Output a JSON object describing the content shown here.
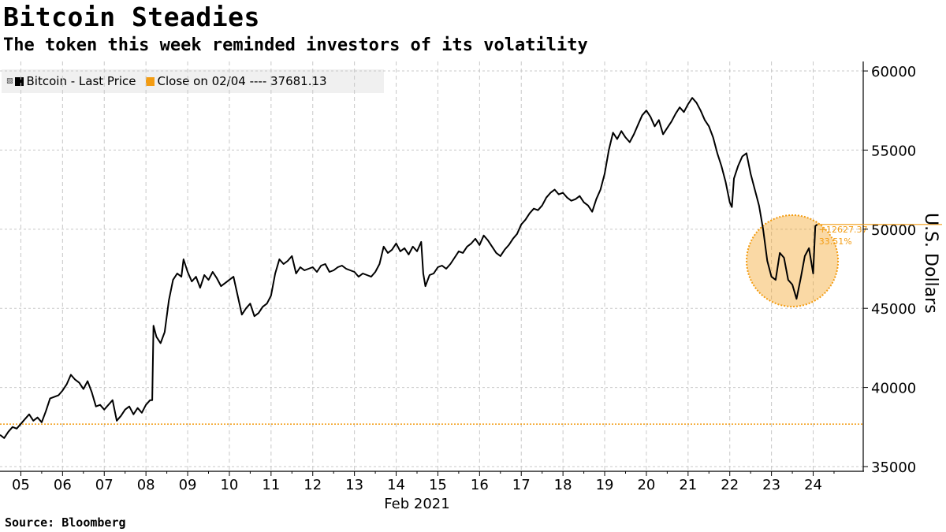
{
  "title": "Bitcoin Steadies",
  "subtitle": "The token this week reminded investors of its volatility",
  "source": "Source: Bloomberg",
  "legend": {
    "series_label": "Bitcoin - Last Price",
    "close_label": "Close on 02/04 ---- 37681.13",
    "series_color": "#000000",
    "close_color": "#f39c12"
  },
  "chart_data": {
    "type": "line",
    "title": "Bitcoin Steadies",
    "subtitle": "The token this week reminded investors of its volatility",
    "ylabel": "U.S. Dollars",
    "xlabel": "Feb 2021",
    "ylim": [
      34700,
      60600
    ],
    "y_ticks": [
      "35000",
      "40000",
      "45000",
      "50000",
      "55000",
      "60000"
    ],
    "x_ticks": [
      "05",
      "06",
      "07",
      "08",
      "09",
      "10",
      "11",
      "12",
      "13",
      "14",
      "15",
      "16",
      "17",
      "18",
      "19",
      "20",
      "21",
      "22",
      "23",
      "24"
    ],
    "x_tick_days": [
      5,
      6,
      7,
      8,
      9,
      10,
      11,
      12,
      13,
      14,
      15,
      16,
      17,
      18,
      19,
      20,
      21,
      22,
      23,
      24
    ],
    "x_range_days": [
      4.5,
      25.2
    ],
    "reference_line": {
      "label": "Close on 02/04",
      "value": 37681.13,
      "color": "#f39c12"
    },
    "annotation": {
      "change": "+12627.37",
      "percent": "33.51%",
      "color": "#f39c12"
    },
    "grid": true,
    "legend_position": "top-left",
    "series": [
      {
        "name": "Bitcoin - Last Price",
        "color": "#000000",
        "points": [
          [
            4.5,
            37000
          ],
          [
            4.6,
            36800
          ],
          [
            4.7,
            37200
          ],
          [
            4.8,
            37500
          ],
          [
            4.9,
            37400
          ],
          [
            5.0,
            37700
          ],
          [
            5.1,
            38000
          ],
          [
            5.2,
            38300
          ],
          [
            5.3,
            37900
          ],
          [
            5.4,
            38100
          ],
          [
            5.5,
            37800
          ],
          [
            5.6,
            38500
          ],
          [
            5.7,
            39300
          ],
          [
            5.8,
            39400
          ],
          [
            5.9,
            39500
          ],
          [
            6.0,
            39800
          ],
          [
            6.1,
            40200
          ],
          [
            6.2,
            40800
          ],
          [
            6.3,
            40500
          ],
          [
            6.4,
            40300
          ],
          [
            6.5,
            39900
          ],
          [
            6.6,
            40400
          ],
          [
            6.7,
            39700
          ],
          [
            6.8,
            38800
          ],
          [
            6.9,
            38900
          ],
          [
            7.0,
            38600
          ],
          [
            7.1,
            38900
          ],
          [
            7.2,
            39200
          ],
          [
            7.3,
            37900
          ],
          [
            7.4,
            38200
          ],
          [
            7.5,
            38600
          ],
          [
            7.6,
            38800
          ],
          [
            7.7,
            38300
          ],
          [
            7.8,
            38700
          ],
          [
            7.9,
            38400
          ],
          [
            8.0,
            38900
          ],
          [
            8.1,
            39200
          ],
          [
            8.15,
            39200
          ],
          [
            8.18,
            43900
          ],
          [
            8.25,
            43200
          ],
          [
            8.35,
            42800
          ],
          [
            8.45,
            43500
          ],
          [
            8.55,
            45500
          ],
          [
            8.65,
            46800
          ],
          [
            8.75,
            47200
          ],
          [
            8.85,
            47000
          ],
          [
            8.9,
            48100
          ],
          [
            9.0,
            47300
          ],
          [
            9.1,
            46700
          ],
          [
            9.2,
            47000
          ],
          [
            9.3,
            46300
          ],
          [
            9.4,
            47100
          ],
          [
            9.5,
            46800
          ],
          [
            9.6,
            47300
          ],
          [
            9.7,
            46900
          ],
          [
            9.8,
            46400
          ],
          [
            9.9,
            46600
          ],
          [
            10.0,
            46800
          ],
          [
            10.1,
            47000
          ],
          [
            10.2,
            45800
          ],
          [
            10.3,
            44600
          ],
          [
            10.4,
            45000
          ],
          [
            10.5,
            45300
          ],
          [
            10.6,
            44500
          ],
          [
            10.7,
            44700
          ],
          [
            10.8,
            45100
          ],
          [
            10.9,
            45300
          ],
          [
            11.0,
            45800
          ],
          [
            11.1,
            47200
          ],
          [
            11.2,
            48100
          ],
          [
            11.3,
            47800
          ],
          [
            11.4,
            48000
          ],
          [
            11.5,
            48300
          ],
          [
            11.6,
            47200
          ],
          [
            11.7,
            47600
          ],
          [
            11.8,
            47400
          ],
          [
            11.9,
            47500
          ],
          [
            12.0,
            47600
          ],
          [
            12.1,
            47300
          ],
          [
            12.2,
            47700
          ],
          [
            12.3,
            47800
          ],
          [
            12.4,
            47300
          ],
          [
            12.5,
            47400
          ],
          [
            12.6,
            47600
          ],
          [
            12.7,
            47700
          ],
          [
            12.8,
            47500
          ],
          [
            12.9,
            47400
          ],
          [
            13.0,
            47300
          ],
          [
            13.1,
            47000
          ],
          [
            13.2,
            47200
          ],
          [
            13.3,
            47100
          ],
          [
            13.4,
            47000
          ],
          [
            13.5,
            47300
          ],
          [
            13.6,
            47800
          ],
          [
            13.7,
            48900
          ],
          [
            13.8,
            48500
          ],
          [
            13.9,
            48700
          ],
          [
            14.0,
            49100
          ],
          [
            14.1,
            48600
          ],
          [
            14.2,
            48800
          ],
          [
            14.3,
            48400
          ],
          [
            14.4,
            48900
          ],
          [
            14.5,
            48600
          ],
          [
            14.6,
            49200
          ],
          [
            14.65,
            47200
          ],
          [
            14.7,
            46400
          ],
          [
            14.8,
            47100
          ],
          [
            14.9,
            47200
          ],
          [
            15.0,
            47600
          ],
          [
            15.1,
            47700
          ],
          [
            15.2,
            47500
          ],
          [
            15.3,
            47800
          ],
          [
            15.4,
            48200
          ],
          [
            15.5,
            48600
          ],
          [
            15.6,
            48500
          ],
          [
            15.7,
            48900
          ],
          [
            15.8,
            49100
          ],
          [
            15.9,
            49400
          ],
          [
            16.0,
            49000
          ],
          [
            16.1,
            49600
          ],
          [
            16.2,
            49300
          ],
          [
            16.3,
            48900
          ],
          [
            16.4,
            48500
          ],
          [
            16.5,
            48300
          ],
          [
            16.6,
            48700
          ],
          [
            16.7,
            49000
          ],
          [
            16.8,
            49400
          ],
          [
            16.9,
            49700
          ],
          [
            17.0,
            50300
          ],
          [
            17.1,
            50600
          ],
          [
            17.2,
            51000
          ],
          [
            17.3,
            51300
          ],
          [
            17.4,
            51200
          ],
          [
            17.5,
            51500
          ],
          [
            17.6,
            52000
          ],
          [
            17.7,
            52300
          ],
          [
            17.8,
            52500
          ],
          [
            17.9,
            52200
          ],
          [
            18.0,
            52300
          ],
          [
            18.1,
            52000
          ],
          [
            18.2,
            51800
          ],
          [
            18.3,
            51900
          ],
          [
            18.4,
            52100
          ],
          [
            18.5,
            51700
          ],
          [
            18.6,
            51500
          ],
          [
            18.7,
            51100
          ],
          [
            18.8,
            51900
          ],
          [
            18.9,
            52500
          ],
          [
            19.0,
            53500
          ],
          [
            19.1,
            55000
          ],
          [
            19.2,
            56100
          ],
          [
            19.3,
            55700
          ],
          [
            19.4,
            56200
          ],
          [
            19.5,
            55800
          ],
          [
            19.6,
            55500
          ],
          [
            19.7,
            56000
          ],
          [
            19.8,
            56600
          ],
          [
            19.9,
            57200
          ],
          [
            20.0,
            57500
          ],
          [
            20.1,
            57100
          ],
          [
            20.2,
            56500
          ],
          [
            20.3,
            56900
          ],
          [
            20.4,
            56000
          ],
          [
            20.5,
            56400
          ],
          [
            20.6,
            56800
          ],
          [
            20.7,
            57300
          ],
          [
            20.8,
            57700
          ],
          [
            20.9,
            57400
          ],
          [
            21.0,
            57900
          ],
          [
            21.1,
            58300
          ],
          [
            21.2,
            58000
          ],
          [
            21.3,
            57500
          ],
          [
            21.4,
            56900
          ],
          [
            21.5,
            56500
          ],
          [
            21.6,
            55800
          ],
          [
            21.7,
            54800
          ],
          [
            21.8,
            54000
          ],
          [
            21.9,
            53000
          ],
          [
            22.0,
            51700
          ],
          [
            22.05,
            51400
          ],
          [
            22.1,
            53200
          ],
          [
            22.2,
            54000
          ],
          [
            22.3,
            54600
          ],
          [
            22.4,
            54800
          ],
          [
            22.5,
            53500
          ],
          [
            22.6,
            52500
          ],
          [
            22.7,
            51500
          ],
          [
            22.8,
            50000
          ],
          [
            22.9,
            48000
          ],
          [
            23.0,
            47000
          ],
          [
            23.1,
            46800
          ],
          [
            23.2,
            48500
          ],
          [
            23.3,
            48200
          ],
          [
            23.4,
            46800
          ],
          [
            23.5,
            46500
          ],
          [
            23.6,
            45600
          ],
          [
            23.7,
            46900
          ],
          [
            23.8,
            48300
          ],
          [
            23.9,
            48800
          ],
          [
            24.0,
            47200
          ],
          [
            24.05,
            50200
          ],
          [
            24.1,
            50300
          ]
        ]
      }
    ]
  }
}
